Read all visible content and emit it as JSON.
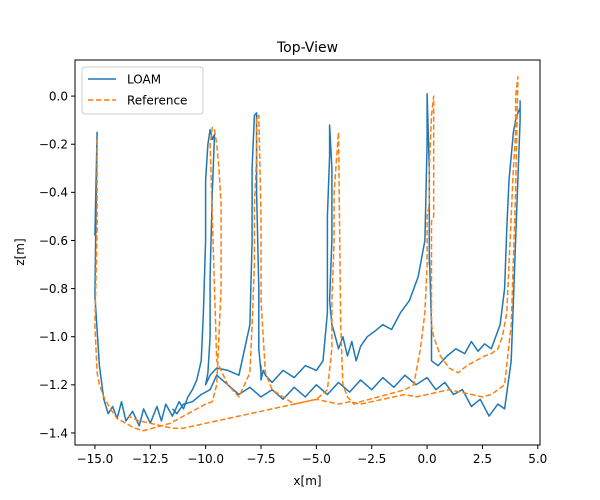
{
  "chart_data": {
    "type": "line",
    "title": "Top-View",
    "xlabel": "x[m]",
    "ylabel": "z[m]",
    "xlim": [
      -15.9,
      5.1
    ],
    "ylim": [
      -1.45,
      0.15
    ],
    "xticks": [
      -15.0,
      -12.5,
      -10.0,
      -7.5,
      -5.0,
      -2.5,
      0.0,
      2.5,
      5.0
    ],
    "xtick_labels": [
      "−15.0",
      "−12.5",
      "−10.0",
      "−7.5",
      "−5.0",
      "−2.5",
      "0.0",
      "2.5",
      "5.0"
    ],
    "yticks": [
      0.0,
      -0.2,
      -0.4,
      -0.6,
      -0.8,
      -1.0,
      -1.2,
      -1.4
    ],
    "ytick_labels": [
      "0.0",
      "−0.2",
      "−0.4",
      "−0.6",
      "−0.8",
      "−1.0",
      "−1.2",
      "−1.4"
    ],
    "grid": false,
    "legend_position": "top-left",
    "series": [
      {
        "name": "LOAM",
        "color": "#1f77b4",
        "dash": "solid",
        "x": [
          -15.0,
          -14.9,
          -15.0,
          -14.8,
          -14.6,
          -14.4,
          -14.2,
          -14.0,
          -13.8,
          -13.6,
          -13.3,
          -13.0,
          -12.8,
          -12.5,
          -12.2,
          -12.0,
          -11.8,
          -11.5,
          -11.2,
          -11.0,
          -10.8,
          -10.6,
          -10.4,
          -10.2,
          -10.1,
          -10.0,
          -10.0,
          -9.9,
          -9.8,
          -9.7,
          -9.6,
          -9.7,
          -9.8,
          -9.8,
          -9.9,
          -10.0,
          -9.8,
          -9.5,
          -9.0,
          -8.5,
          -8.0,
          -7.9,
          -7.9,
          -7.8,
          -7.7,
          -7.7,
          -7.6,
          -7.6,
          -7.5,
          -7.5,
          -7.5,
          -7.4,
          -7.3,
          -7.0,
          -6.5,
          -6.0,
          -5.5,
          -5.0,
          -4.7,
          -4.5,
          -4.5,
          -4.4,
          -4.4,
          -4.3,
          -4.3,
          -4.4,
          -4.3,
          -4.2,
          -4.0,
          -3.8,
          -3.6,
          -3.4,
          -3.2,
          -3.0,
          -2.7,
          -2.4,
          -2.0,
          -1.6,
          -1.2,
          -0.8,
          -0.4,
          -0.1,
          0.0,
          0.0,
          0.1,
          0.1,
          0.1,
          0.1,
          0.2,
          0.2,
          0.2,
          0.5,
          0.9,
          1.3,
          1.7,
          2.0,
          2.3,
          2.6,
          2.9,
          3.1,
          3.3,
          3.5,
          3.6,
          3.7,
          3.8,
          3.9,
          4.0,
          4.1,
          4.2,
          4.2,
          4.2,
          4.0,
          3.8,
          3.5,
          3.2,
          2.8,
          2.4,
          2.0,
          1.6,
          1.2,
          0.8,
          0.4,
          0.0,
          -0.5,
          -1.0,
          -1.5,
          -2.0,
          -2.5,
          -3.0,
          -3.5,
          -4.0,
          -4.5,
          -5.0,
          -5.5,
          -6.0,
          -6.5,
          -7.0,
          -7.5,
          -8.0,
          -8.5,
          -9.0,
          -9.5,
          -9.8,
          -10.2,
          -10.6,
          -11.0,
          -11.3,
          -11.5
        ],
        "y": [
          -0.58,
          -0.15,
          -0.83,
          -1.12,
          -1.26,
          -1.32,
          -1.29,
          -1.34,
          -1.27,
          -1.35,
          -1.31,
          -1.37,
          -1.3,
          -1.36,
          -1.29,
          -1.35,
          -1.28,
          -1.33,
          -1.27,
          -1.3,
          -1.25,
          -1.22,
          -1.18,
          -1.1,
          -0.9,
          -0.6,
          -0.35,
          -0.2,
          -0.14,
          -0.18,
          -0.16,
          -0.4,
          -0.75,
          -1.0,
          -1.15,
          -1.2,
          -1.16,
          -1.13,
          -1.14,
          -1.16,
          -0.95,
          -0.6,
          -0.3,
          -0.08,
          -0.07,
          -0.4,
          -0.8,
          -1.05,
          -1.15,
          -1.12,
          -1.18,
          -1.14,
          -1.16,
          -1.19,
          -1.14,
          -1.17,
          -1.12,
          -1.14,
          -1.1,
          -0.9,
          -0.5,
          -0.25,
          -0.12,
          -0.3,
          -0.6,
          -0.85,
          -0.95,
          -0.98,
          -1.05,
          -1.0,
          -1.08,
          -1.02,
          -1.1,
          -1.04,
          -1.0,
          -0.98,
          -0.95,
          -0.97,
          -0.9,
          -0.85,
          -0.75,
          -0.6,
          -0.2,
          0.01,
          -0.3,
          -0.55,
          -0.7,
          -0.65,
          -0.95,
          -1.08,
          -1.1,
          -1.12,
          -1.08,
          -1.05,
          -1.07,
          -1.02,
          -1.06,
          -1.03,
          -1.05,
          -1.0,
          -0.95,
          -0.8,
          -0.55,
          -0.35,
          -0.25,
          -0.15,
          -0.1,
          -0.07,
          -0.05,
          -0.02,
          -0.1,
          -0.6,
          -1.1,
          -1.3,
          -1.28,
          -1.33,
          -1.26,
          -1.29,
          -1.22,
          -1.24,
          -1.19,
          -1.22,
          -1.17,
          -1.2,
          -1.16,
          -1.21,
          -1.17,
          -1.22,
          -1.18,
          -1.23,
          -1.19,
          -1.24,
          -1.2,
          -1.25,
          -1.21,
          -1.26,
          -1.22,
          -1.25,
          -1.21,
          -1.24,
          -1.2,
          -1.16,
          -1.22,
          -1.24,
          -1.27,
          -1.28,
          -1.32,
          -1.3
        ]
      },
      {
        "name": "Reference",
        "color": "#ff7f0e",
        "dash": "dashed",
        "x": [
          -14.9,
          -14.9,
          -15.0,
          -14.9,
          -14.8,
          -14.6,
          -14.3,
          -14.0,
          -13.6,
          -13.2,
          -12.8,
          -12.4,
          -12.0,
          -11.6,
          -11.2,
          -10.8,
          -10.4,
          -10.0,
          -9.7,
          -9.5,
          -9.4,
          -9.3,
          -9.3,
          -9.3,
          -9.4,
          -9.5,
          -9.6,
          -9.7,
          -9.8,
          -9.5,
          -9.0,
          -8.5,
          -8.0,
          -7.9,
          -7.8,
          -7.8,
          -7.7,
          -7.7,
          -7.6,
          -7.5,
          -7.5,
          -7.3,
          -7.0,
          -6.5,
          -6.0,
          -5.5,
          -5.0,
          -4.5,
          -4.3,
          -4.3,
          -4.2,
          -4.2,
          -4.0,
          -3.9,
          -3.8,
          -3.6,
          -3.3,
          -3.0,
          -2.6,
          -2.2,
          -1.8,
          -1.4,
          -1.0,
          -0.6,
          -0.3,
          -0.1,
          0.0,
          0.0,
          0.1,
          0.1,
          0.2,
          0.3,
          0.3,
          0.2,
          0.2,
          0.3,
          0.6,
          1.0,
          1.4,
          1.8,
          2.2,
          2.6,
          2.9,
          3.2,
          3.4,
          3.6,
          3.7,
          3.8,
          3.9,
          4.0,
          4.0,
          4.1,
          4.0,
          3.8,
          3.5,
          3.2,
          2.9,
          2.5,
          2.0,
          1.5,
          1.0,
          0.5,
          0.0,
          -0.5,
          -1.0,
          -1.5,
          -2.0,
          -2.5,
          -3.0,
          -3.5,
          -4.0,
          -4.5,
          -5.0,
          -5.5,
          -6.0,
          -6.5,
          -7.0,
          -7.5,
          -8.0,
          -8.5,
          -9.0,
          -9.5,
          -10.0,
          -10.5,
          -11.0,
          -11.5,
          -12.0,
          -12.5,
          -13.0,
          -13.5
        ],
        "y": [
          -0.18,
          -0.55,
          -0.95,
          -1.15,
          -1.2,
          -1.25,
          -1.3,
          -1.34,
          -1.36,
          -1.38,
          -1.39,
          -1.38,
          -1.37,
          -1.36,
          -1.34,
          -1.32,
          -1.3,
          -1.28,
          -1.27,
          -1.2,
          -1.0,
          -0.8,
          -0.6,
          -0.45,
          -0.3,
          -0.2,
          -0.14,
          -0.13,
          -0.2,
          -1.1,
          -1.2,
          -1.25,
          -1.15,
          -0.95,
          -0.7,
          -0.45,
          -0.25,
          -0.09,
          -0.08,
          -0.5,
          -0.85,
          -1.15,
          -1.22,
          -1.25,
          -1.28,
          -1.27,
          -1.26,
          -1.22,
          -1.05,
          -0.85,
          -0.6,
          -0.4,
          -0.15,
          -0.95,
          -1.2,
          -1.25,
          -1.28,
          -1.27,
          -1.26,
          -1.25,
          -1.24,
          -1.23,
          -1.22,
          -1.2,
          -1.05,
          -0.9,
          -0.7,
          -0.5,
          -0.45,
          -0.3,
          -0.08,
          0.0,
          -0.5,
          -0.52,
          -0.95,
          -1.0,
          -1.08,
          -1.13,
          -1.15,
          -1.12,
          -1.1,
          -1.08,
          -1.07,
          -1.05,
          -1.0,
          -0.9,
          -0.7,
          -0.5,
          -0.3,
          -0.15,
          0.0,
          0.08,
          -0.4,
          -0.95,
          -1.2,
          -1.22,
          -1.24,
          -1.25,
          -1.24,
          -1.23,
          -1.22,
          -1.23,
          -1.24,
          -1.25,
          -1.24,
          -1.25,
          -1.26,
          -1.27,
          -1.28,
          -1.27,
          -1.28,
          -1.27,
          -1.26,
          -1.27,
          -1.28,
          -1.29,
          -1.3,
          -1.31,
          -1.32,
          -1.33,
          -1.34,
          -1.35,
          -1.36,
          -1.37,
          -1.38,
          -1.38,
          -1.37,
          -1.36,
          -1.35,
          -1.33
        ]
      }
    ]
  }
}
